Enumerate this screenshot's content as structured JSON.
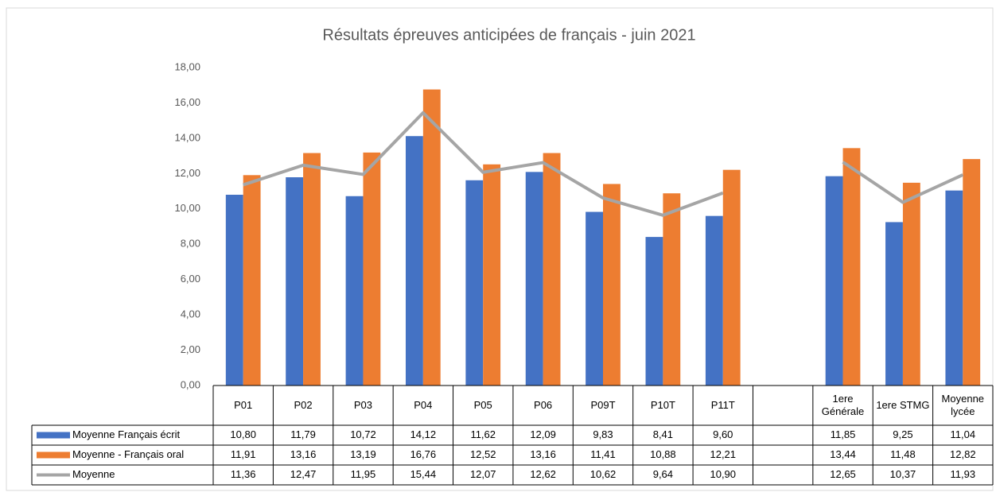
{
  "chart_data": {
    "type": "bar",
    "title": "Résultats épreuves anticipées de français - juin 2021",
    "categories": [
      "P01",
      "P02",
      "P03",
      "P04",
      "P05",
      "P06",
      "P09T",
      "P10T",
      "P11T",
      null,
      "1ere Générale",
      "1ere STMG",
      "Moyenne lycée"
    ],
    "series": [
      {
        "name": "Moyenne Français écrit",
        "color": "#4472c4",
        "type": "bar",
        "values": [
          10.8,
          11.79,
          10.72,
          14.12,
          11.62,
          12.09,
          9.83,
          8.41,
          9.6,
          null,
          11.85,
          9.25,
          11.04
        ],
        "value_labels": [
          "10,80",
          "11,79",
          "10,72",
          "14,12",
          "11,62",
          "12,09",
          "9,83",
          "8,41",
          "9,60",
          null,
          "11,85",
          "9,25",
          "11,04"
        ]
      },
      {
        "name": "Moyenne - Français oral",
        "color": "#ed7d31",
        "type": "bar",
        "values": [
          11.91,
          13.16,
          13.19,
          16.76,
          12.52,
          13.16,
          11.41,
          10.88,
          12.21,
          null,
          13.44,
          11.48,
          12.82
        ],
        "value_labels": [
          "11,91",
          "13,16",
          "13,19",
          "16,76",
          "12,52",
          "13,16",
          "11,41",
          "10,88",
          "12,21",
          null,
          "13,44",
          "11,48",
          "12,82"
        ]
      },
      {
        "name": "Moyenne",
        "color": "#a5a5a5",
        "type": "line",
        "values": [
          11.36,
          12.47,
          11.95,
          15.44,
          12.07,
          12.62,
          10.62,
          9.64,
          10.9,
          null,
          12.65,
          10.37,
          11.93
        ],
        "value_labels": [
          "11,36",
          "12,47",
          "11,95",
          "15,44",
          "12,07",
          "12,62",
          "10,62",
          "9,64",
          "10,90",
          null,
          "12,65",
          "10,37",
          "11,93"
        ]
      }
    ],
    "ylim": [
      0,
      18
    ],
    "yticks": [
      {
        "value": 0,
        "label": "0,00"
      },
      {
        "value": 2,
        "label": "2,00"
      },
      {
        "value": 4,
        "label": "4,00"
      },
      {
        "value": 6,
        "label": "6,00"
      },
      {
        "value": 8,
        "label": "8,00"
      },
      {
        "value": 10,
        "label": "10,00"
      },
      {
        "value": 12,
        "label": "12,00"
      },
      {
        "value": 14,
        "label": "14,00"
      },
      {
        "value": 16,
        "label": "16,00"
      },
      {
        "value": 18,
        "label": "18,00"
      }
    ],
    "grid": false,
    "data_table": true
  }
}
